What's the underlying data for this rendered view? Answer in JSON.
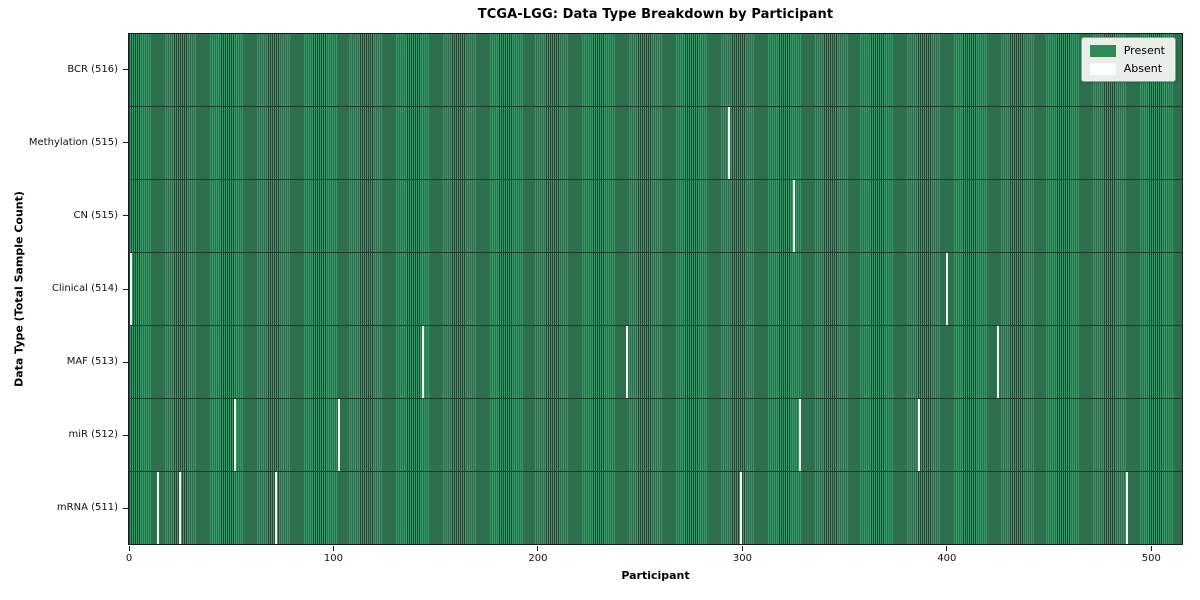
{
  "chart_data": {
    "type": "heatmap",
    "title": "TCGA-LGG: Data Type Breakdown by Participant",
    "xlabel": "Participant",
    "ylabel": "Data Type (Total Sample Count)",
    "n_participants": 516,
    "x_ticks": [
      0,
      100,
      200,
      300,
      400,
      500
    ],
    "xlim": [
      -0.5,
      515.5
    ],
    "grid": false,
    "colors": {
      "present": "#2e8b57",
      "absent": "#ffffff",
      "stripe_dark": "#204a33",
      "stripe_light": "#3c9668",
      "legend_bg": "#e9eee9"
    },
    "legend": {
      "position": "upper-right",
      "entries": [
        {
          "label": "Present",
          "color": "#2e8b57"
        },
        {
          "label": "Absent",
          "color": "#ffffff"
        }
      ]
    },
    "rows": [
      {
        "label": "BCR (516)",
        "data_type": "BCR",
        "present_count": 516,
        "absent_participants": []
      },
      {
        "label": "Methylation (515)",
        "data_type": "Methylation",
        "present_count": 515,
        "absent_participants": [
          294
        ]
      },
      {
        "label": "CN (515)",
        "data_type": "CN",
        "present_count": 515,
        "absent_participants": [
          326
        ]
      },
      {
        "label": "Clinical (514)",
        "data_type": "Clinical",
        "present_count": 514,
        "absent_participants": [
          1,
          401
        ]
      },
      {
        "label": "MAF (513)",
        "data_type": "MAF",
        "present_count": 513,
        "absent_participants": [
          144,
          244,
          426
        ]
      },
      {
        "label": "miR (512)",
        "data_type": "miR",
        "present_count": 512,
        "absent_participants": [
          52,
          103,
          329,
          387
        ]
      },
      {
        "label": "mRNA (511)",
        "data_type": "mRNA",
        "present_count": 511,
        "absent_participants": [
          14,
          25,
          72,
          300,
          489
        ]
      }
    ]
  }
}
